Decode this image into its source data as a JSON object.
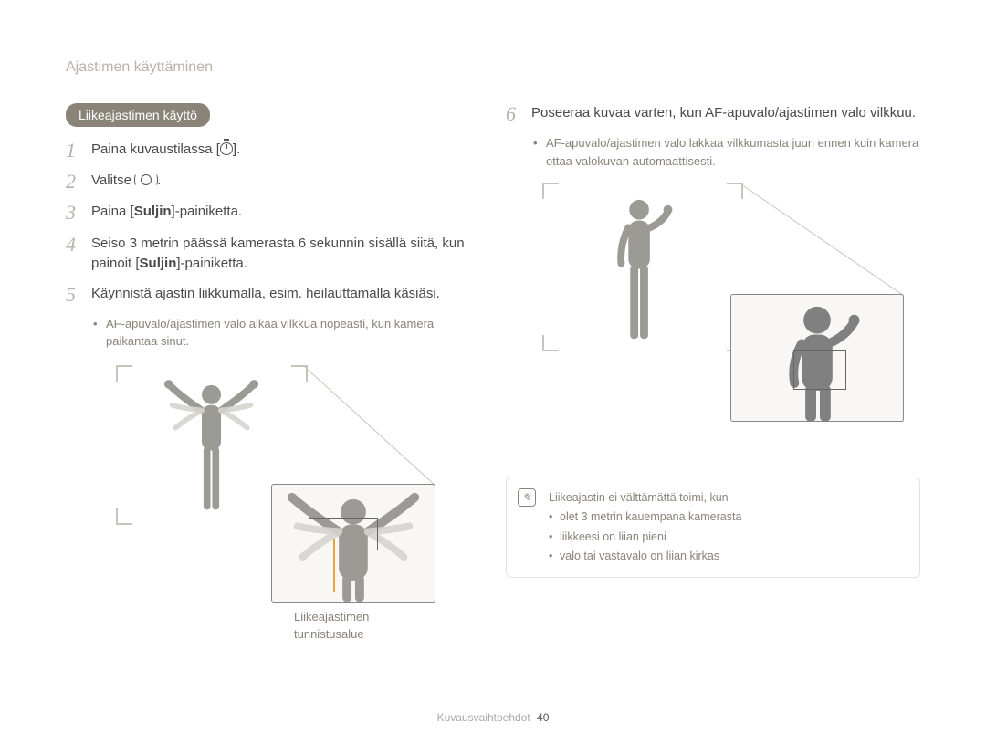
{
  "header": "Ajastimen käyttäminen",
  "section_pill": "Liikeajastimen käyttö",
  "left_steps": [
    {
      "num": "1",
      "pre": "Paina kuvaustilassa [",
      "post": "].",
      "icon": "timer"
    },
    {
      "num": "2",
      "pre": "Valitse ",
      "post": ".",
      "icon": "motion"
    },
    {
      "num": "3",
      "html": "Paina [<b>Suljin</b>]-painiketta."
    },
    {
      "num": "4",
      "html": "Seiso 3 metrin päässä kamerasta 6 sekunnin sisällä siitä, kun painoit [<b>Suljin</b>]-painiketta."
    },
    {
      "num": "5",
      "html": "Käynnistä ajastin liikkumalla, esim. heilauttamalla käsiäsi."
    }
  ],
  "left_bullet": "AF-apuvalo/ajastimen valo alkaa vilkkua nopeasti, kun kamera paikantaa sinut.",
  "right_steps": [
    {
      "num": "6",
      "html": "Poseeraa kuvaa varten, kun AF-apuvalo/ajastimen valo vilkkuu."
    }
  ],
  "right_bullet": "AF-apuvalo/ajastimen valo lakkaa vilkkumasta juuri ennen kuin kamera ottaa valokuvan automaattisesti.",
  "callout_line1": "Liikeajastimen",
  "callout_line2": "tunnistusalue",
  "note": {
    "title": "Liikeajastin ei välttämättä toimi, kun",
    "items": [
      "olet 3 metrin kauempana kamerasta",
      "liikkeesi on liian pieni",
      "valo tai vastavalo on liian kirkas"
    ]
  },
  "footer_label": "Kuvausvaihtoehdot",
  "footer_page": "40",
  "colors": {
    "bg": "#ffffff",
    "text": "#4a4a4a",
    "muted": "#8a8378",
    "header": "#b8b3a8",
    "pill_bg": "#8a8378",
    "corner": "#c8c4bb",
    "orange": "#e8a33d",
    "person": "#9c9a94",
    "person_light": "#d6d4cf",
    "figbox_bg": "#f8f7f5",
    "figbox_border": "#888888",
    "note_border": "#e6e2d9"
  }
}
